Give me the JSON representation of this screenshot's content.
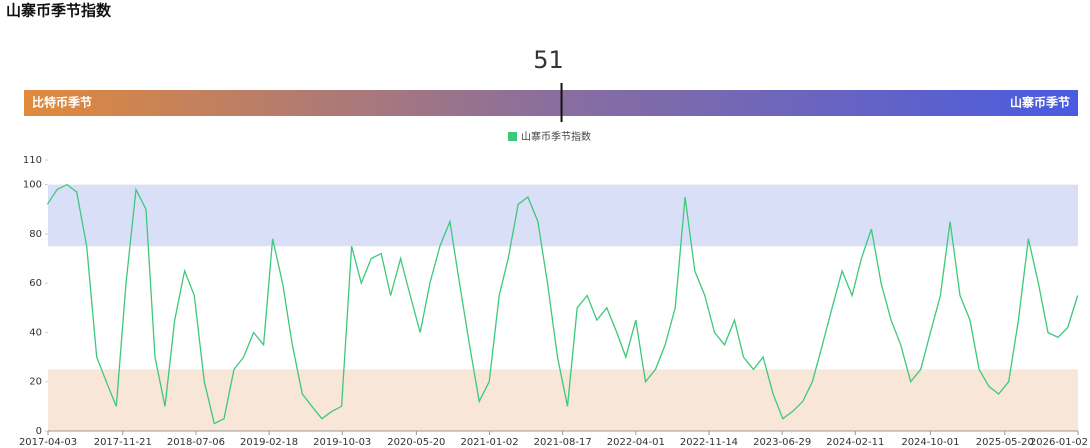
{
  "title": "山寨币季节指数",
  "chart_data": [
    {
      "type": "gauge",
      "value": 51,
      "range": [
        0,
        100
      ],
      "left_label": "比特币季节",
      "right_label": "山寨币季节",
      "colors": [
        "#e08a3c",
        "#8a6e9e",
        "#4a5be0"
      ]
    },
    {
      "type": "line",
      "x": [
        "2017-04-01",
        "2017-05-01",
        "2017-06-01",
        "2017-07-01",
        "2017-08-01",
        "2017-09-01",
        "2017-10-01",
        "2017-11-01",
        "2017-12-01",
        "2018-01-01",
        "2018-02-01",
        "2018-03-01",
        "2018-04-01",
        "2018-05-01",
        "2018-06-01",
        "2018-07-01",
        "2018-08-01",
        "2018-09-01",
        "2018-10-01",
        "2018-11-01",
        "2018-12-01",
        "2019-01-01",
        "2019-02-01",
        "2019-03-01",
        "2019-04-01",
        "2019-05-01",
        "2019-06-01",
        "2019-07-01",
        "2019-08-01",
        "2019-09-01",
        "2019-10-01",
        "2019-11-01",
        "2019-12-01",
        "2020-01-01",
        "2020-02-01",
        "2020-03-01",
        "2020-04-01",
        "2020-05-01",
        "2020-06-01",
        "2020-07-01",
        "2020-08-01",
        "2020-09-01",
        "2020-10-01",
        "2020-11-01",
        "2020-12-01",
        "2021-01-01",
        "2021-02-01",
        "2021-03-01",
        "2021-04-01",
        "2021-05-01",
        "2021-06-01",
        "2021-07-01",
        "2021-08-01",
        "2021-09-01",
        "2021-10-01",
        "2021-11-01",
        "2021-12-01",
        "2022-01-01",
        "2022-02-01",
        "2022-03-01",
        "2022-04-01",
        "2022-05-01",
        "2022-06-01",
        "2022-07-01",
        "2022-08-01",
        "2022-09-01",
        "2022-10-01",
        "2022-11-01",
        "2022-12-01",
        "2023-01-01",
        "2023-02-01",
        "2023-03-01",
        "2023-04-01",
        "2023-05-01",
        "2023-06-01",
        "2023-07-01",
        "2023-08-01",
        "2023-09-01",
        "2023-10-01",
        "2023-11-01",
        "2023-12-01",
        "2024-01-01",
        "2024-02-01",
        "2024-03-01",
        "2024-04-01",
        "2024-05-01",
        "2024-06-01",
        "2024-07-01",
        "2024-08-01",
        "2024-09-01",
        "2024-10-01",
        "2024-11-01",
        "2024-12-01",
        "2025-01-01",
        "2025-02-01",
        "2025-03-01",
        "2025-04-01",
        "2025-05-01",
        "2025-06-01",
        "2025-07-01",
        "2025-08-01",
        "2025-09-01",
        "2025-10-01",
        "2025-11-01",
        "2025-12-01",
        "2026-01-01"
      ],
      "series": [
        {
          "name": "山寨币季节指数",
          "color": "#3cc97a",
          "values": [
            92,
            98,
            100,
            97,
            75,
            30,
            20,
            10,
            60,
            98,
            90,
            30,
            10,
            45,
            65,
            55,
            20,
            3,
            5,
            25,
            30,
            40,
            35,
            78,
            60,
            35,
            15,
            10,
            5,
            8,
            10,
            75,
            60,
            70,
            72,
            55,
            70,
            55,
            40,
            60,
            75,
            85,
            60,
            35,
            12,
            20,
            55,
            70,
            92,
            95,
            85,
            60,
            30,
            10,
            50,
            55,
            45,
            50,
            40,
            30,
            45,
            20,
            25,
            35,
            50,
            95,
            65,
            55,
            40,
            35,
            45,
            30,
            25,
            30,
            15,
            5,
            8,
            12,
            20,
            35,
            50,
            65,
            55,
            70,
            82,
            60,
            45,
            35,
            20,
            25,
            40,
            55,
            85,
            55,
            45,
            25,
            18,
            15,
            20,
            45,
            78,
            60,
            40,
            38,
            42,
            55
          ]
        }
      ],
      "xlim": [
        "2017-04-03",
        "2026-01-02"
      ],
      "xticks": [
        "2017-04-03",
        "2017-11-21",
        "2018-07-06",
        "2019-02-18",
        "2019-10-03",
        "2020-05-20",
        "2021-01-02",
        "2021-08-17",
        "2022-04-01",
        "2022-11-14",
        "2023-06-29",
        "2024-02-11",
        "2024-10-01",
        "2025-05-20",
        "2026-01-02"
      ],
      "ylim": [
        0,
        110
      ],
      "yticks": [
        0,
        20,
        40,
        60,
        80,
        100,
        110
      ],
      "bands": [
        {
          "from": 75,
          "to": 100,
          "color": "#dadff8"
        },
        {
          "from": 0,
          "to": 25,
          "color": "#f8e6d8"
        }
      ]
    }
  ]
}
